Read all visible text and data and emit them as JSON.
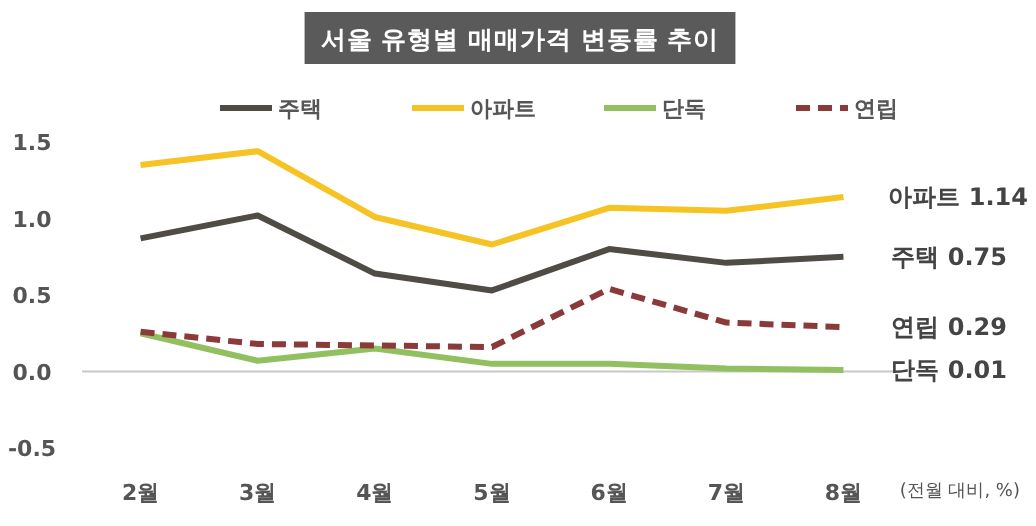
{
  "chart_data": {
    "type": "line",
    "title": "서울 유형별 매매가격 변동률 추이",
    "categories": [
      "2월",
      "3월",
      "4월",
      "5월",
      "6월",
      "7월",
      "8월"
    ],
    "series": [
      {
        "name": "주택",
        "color": "#4f4b45",
        "values": [
          0.87,
          1.02,
          0.64,
          0.53,
          0.8,
          0.71,
          0.75
        ]
      },
      {
        "name": "아파트",
        "color": "#f5c324",
        "values": [
          1.35,
          1.44,
          1.01,
          0.83,
          1.07,
          1.05,
          1.14
        ]
      },
      {
        "name": "단독",
        "color": "#92c060",
        "values": [
          0.25,
          0.07,
          0.15,
          0.05,
          0.05,
          0.02,
          0.01
        ]
      },
      {
        "name": "연립",
        "color": "#8b3a3a",
        "line_style": "dashed",
        "values": [
          0.26,
          0.18,
          0.17,
          0.16,
          0.54,
          0.32,
          0.29
        ]
      }
    ],
    "ylim": [
      -0.5,
      1.5
    ],
    "yticks": [
      {
        "value": -0.5,
        "label": "-0.5"
      },
      {
        "value": 0,
        "label": "0.0"
      },
      0.5,
      {
        "value": 1,
        "label": "1.0"
      },
      1.5
    ],
    "ref_lines": [
      {
        "axis": "y",
        "value": 0,
        "color": "#c8c8c8"
      }
    ],
    "legend": "top",
    "grid": false,
    "marker": "none",
    "annotations": [
      {
        "text": "아파트 1.14",
        "x": "8월",
        "y": 1.14
      },
      {
        "text": "주택 0.75",
        "x": "8월",
        "y": 0.75
      },
      {
        "text": "연립 0.29",
        "x": "8월",
        "y": 0.29
      },
      {
        "text": "단독 0.01",
        "x": "8월",
        "y": 0.01
      },
      "(전월 대비, %)"
    ]
  }
}
